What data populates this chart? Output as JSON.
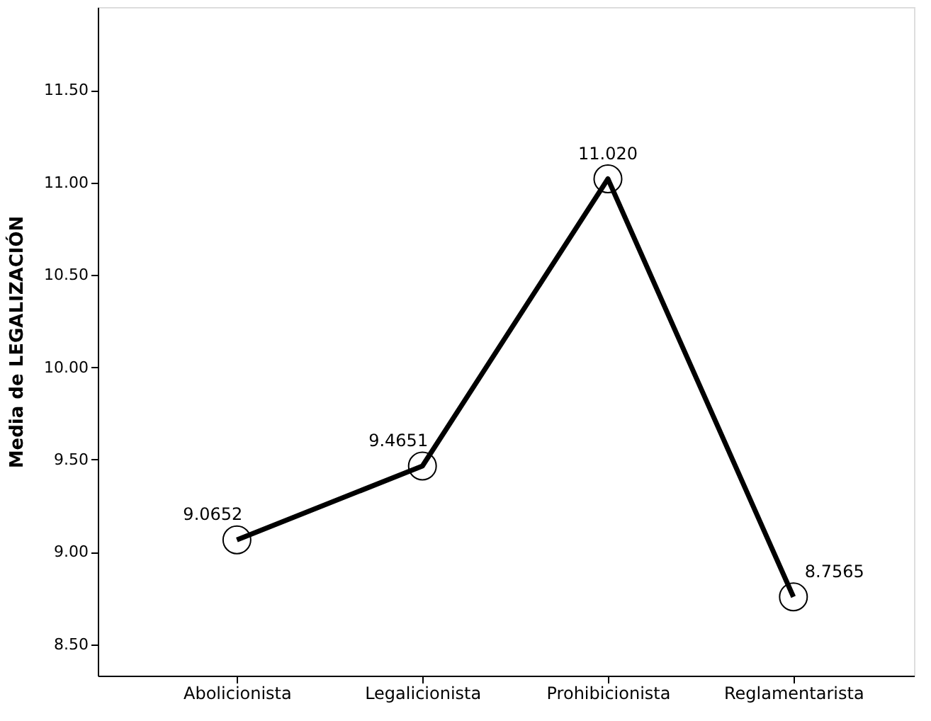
{
  "chart_data": {
    "type": "line",
    "ylabel": "Media de LEGALIZACIÓN",
    "categories": [
      "Abolicionista",
      "Legalicionista",
      "Prohibicionista",
      "Reglamentarista"
    ],
    "series": [
      {
        "color": "#000000",
        "values": [
          9.0652,
          9.4651,
          11.02,
          8.7565
        ],
        "value_labels": [
          "9.0652",
          "9.4651",
          "11.020",
          "8.7565"
        ]
      }
    ],
    "ylim": [
      8.33,
      11.95
    ],
    "yticks": [
      {
        "value": 8.5,
        "label": "8.50"
      },
      {
        "value": 9.0,
        "label": "9.00"
      },
      {
        "value": 9.5,
        "label": "9.50"
      },
      {
        "value": 10.0,
        "label": "10.00"
      },
      {
        "value": 10.5,
        "label": "10.50"
      },
      {
        "value": 11.0,
        "label": "11.00"
      },
      {
        "value": 11.5,
        "label": "11.50"
      }
    ],
    "grid": false,
    "marker": "circle",
    "line_style": "solid"
  }
}
